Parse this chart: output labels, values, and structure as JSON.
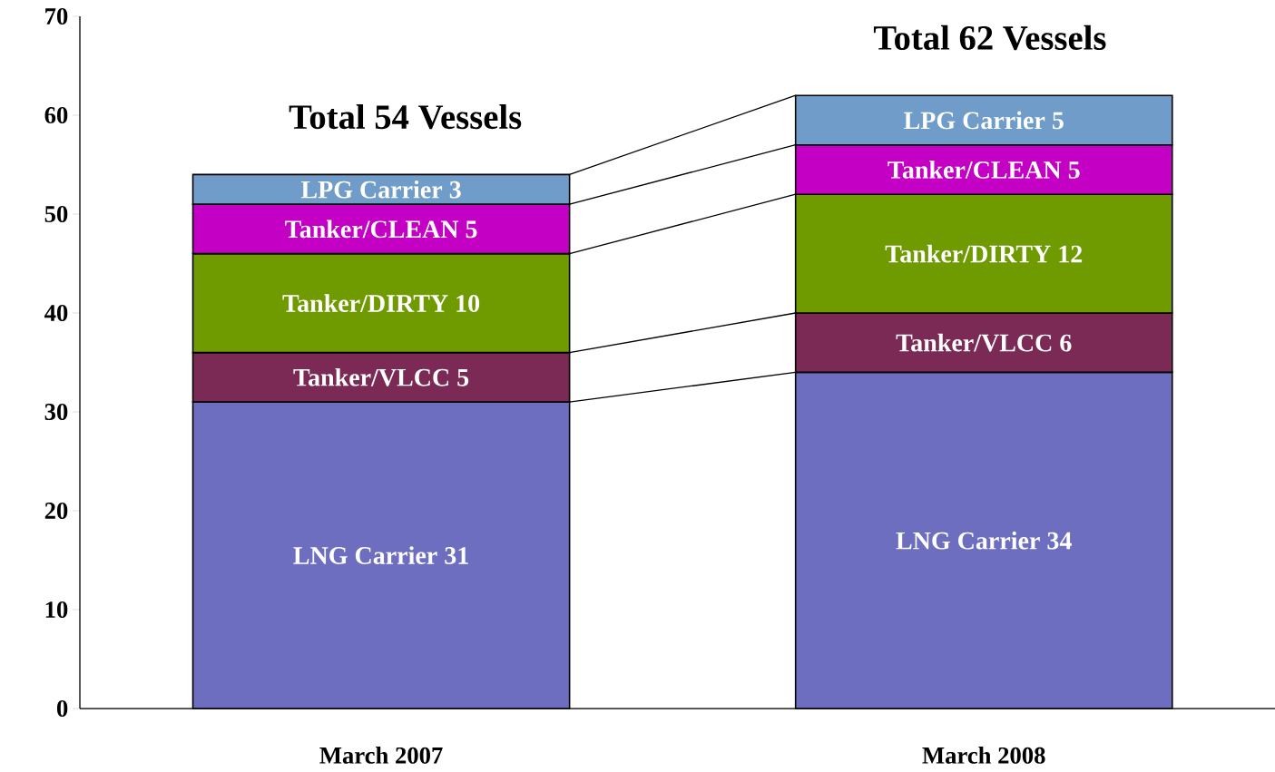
{
  "chart_data": {
    "type": "bar",
    "stacked": true,
    "categories": [
      "March 2007",
      "March 2008"
    ],
    "series": [
      {
        "name": "LNG Carrier",
        "color": "#6e6ec0",
        "values": [
          31,
          34
        ]
      },
      {
        "name": "Tanker/VLCC",
        "color": "#7a2a55",
        "values": [
          5,
          6
        ]
      },
      {
        "name": "Tanker/DIRTY",
        "color": "#6f9a00",
        "values": [
          10,
          12
        ]
      },
      {
        "name": "Tanker/CLEAN",
        "color": "#c400c4",
        "values": [
          5,
          5
        ]
      },
      {
        "name": "LPG Carrier",
        "color": "#6f9cc8",
        "values": [
          3,
          5
        ]
      }
    ],
    "data_labels": true,
    "totals": [
      "Total 54 Vessels",
      "Total 62 Vessels"
    ],
    "ylim": [
      0,
      70
    ],
    "yticks": [
      0,
      10,
      20,
      30,
      40,
      50,
      60,
      70
    ],
    "grid": false
  }
}
